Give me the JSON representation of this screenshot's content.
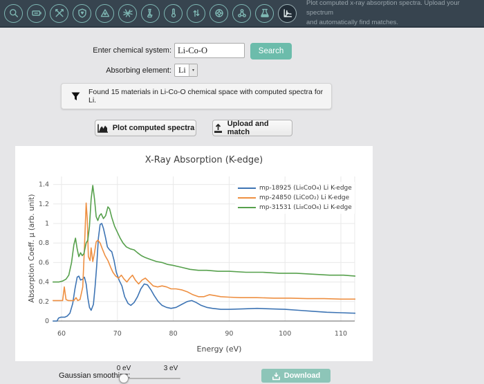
{
  "header": {
    "tooltip_line1": "Plot computed x-ray absorption spectra. Upload your spectrum",
    "tooltip_line2": "and automatically find matches.",
    "icons": [
      "search",
      "battery",
      "toolkit",
      "shield",
      "phase-diagram",
      "interface",
      "flask",
      "thermometer",
      "reaction-arrows",
      "porous",
      "molecule",
      "beaker",
      "xas-spectrum"
    ],
    "active_icon": "xas-spectrum"
  },
  "form": {
    "chemsys_label": "Enter chemical system:",
    "chemsys_value": "Li-Co-O",
    "search_label": "Search",
    "element_label": "Absorbing element:",
    "element_value": "Li"
  },
  "notice": {
    "text": "Found 15 materials in Li-Co-O chemical space with computed spectra for Li."
  },
  "actions": {
    "plot_label": "Plot computed spectra",
    "upload_label": "Upload and match"
  },
  "chart_data": {
    "type": "line",
    "title": "X-Ray Absorption (K-edge)",
    "xlabel": "Energy (eV)",
    "ylabel": "Absorption Coeff. μ (arb. unit)",
    "xlim": [
      58.4,
      112.6
    ],
    "ylim": [
      0,
      1.45
    ],
    "xticks": [
      60,
      70,
      80,
      90,
      100,
      110
    ],
    "yticks": [
      0,
      0.2,
      0.4,
      0.6,
      0.8,
      1,
      1.2,
      1.4
    ],
    "grid": true,
    "legend_position": "top-right",
    "series": [
      {
        "name": "mp-18925 (Li₆CoO₄) Li K-edge",
        "color": "#3d74b4",
        "points": [
          [
            58.4,
            0.0
          ],
          [
            59.2,
            0.0
          ],
          [
            59.45,
            0.03
          ],
          [
            59.9,
            0.04
          ],
          [
            60.6,
            0.04
          ],
          [
            61.0,
            0.05
          ],
          [
            61.5,
            0.08
          ],
          [
            62.0,
            0.18
          ],
          [
            62.4,
            0.33
          ],
          [
            62.8,
            0.45
          ],
          [
            63.1,
            0.46
          ],
          [
            63.4,
            0.42
          ],
          [
            63.8,
            0.43
          ],
          [
            64.1,
            0.45
          ],
          [
            64.4,
            0.38
          ],
          [
            64.7,
            0.24
          ],
          [
            65.0,
            0.14
          ],
          [
            65.3,
            0.11
          ],
          [
            65.7,
            0.17
          ],
          [
            66.0,
            0.35
          ],
          [
            66.3,
            0.57
          ],
          [
            66.6,
            0.85
          ],
          [
            66.9,
            0.99
          ],
          [
            67.2,
            1.0
          ],
          [
            67.5,
            0.95
          ],
          [
            67.9,
            0.85
          ],
          [
            68.2,
            0.76
          ],
          [
            68.6,
            0.73
          ],
          [
            69.0,
            0.71
          ],
          [
            69.4,
            0.62
          ],
          [
            69.8,
            0.5
          ],
          [
            70.3,
            0.42
          ],
          [
            70.8,
            0.36
          ],
          [
            71.3,
            0.25
          ],
          [
            71.9,
            0.18
          ],
          [
            72.4,
            0.16
          ],
          [
            73.0,
            0.19
          ],
          [
            73.6,
            0.25
          ],
          [
            74.2,
            0.33
          ],
          [
            74.8,
            0.38
          ],
          [
            75.4,
            0.37
          ],
          [
            76.0,
            0.32
          ],
          [
            76.6,
            0.26
          ],
          [
            77.3,
            0.2
          ],
          [
            78.0,
            0.16
          ],
          [
            78.8,
            0.14
          ],
          [
            79.6,
            0.13
          ],
          [
            80.5,
            0.14
          ],
          [
            81.5,
            0.17
          ],
          [
            82.5,
            0.2
          ],
          [
            83.3,
            0.21
          ],
          [
            84.1,
            0.19
          ],
          [
            85.0,
            0.16
          ],
          [
            86.0,
            0.14
          ],
          [
            87.0,
            0.13
          ],
          [
            88.5,
            0.12
          ],
          [
            90.0,
            0.12
          ],
          [
            92.5,
            0.125
          ],
          [
            95.0,
            0.13
          ],
          [
            97.5,
            0.125
          ],
          [
            100.0,
            0.12
          ],
          [
            102.5,
            0.11
          ],
          [
            105.0,
            0.1
          ],
          [
            107.5,
            0.09
          ],
          [
            110.0,
            0.085
          ],
          [
            112.6,
            0.08
          ]
        ]
      },
      {
        "name": "mp-24850 (LiCoO₂) Li K-edge",
        "color": "#ee8f41",
        "points": [
          [
            58.4,
            0.21
          ],
          [
            59.6,
            0.21
          ],
          [
            60.2,
            0.21
          ],
          [
            60.5,
            0.35
          ],
          [
            60.8,
            0.22
          ],
          [
            61.2,
            0.21
          ],
          [
            62.2,
            0.21
          ],
          [
            62.6,
            0.24
          ],
          [
            62.9,
            0.21
          ],
          [
            63.3,
            0.22
          ],
          [
            63.8,
            0.35
          ],
          [
            64.1,
            0.75
          ],
          [
            64.4,
            1.21
          ],
          [
            64.6,
            1.05
          ],
          [
            64.8,
            0.66
          ],
          [
            65.1,
            0.62
          ],
          [
            65.3,
            0.75
          ],
          [
            65.6,
            0.61
          ],
          [
            65.9,
            0.7
          ],
          [
            66.2,
            0.81
          ],
          [
            66.5,
            0.83
          ],
          [
            66.9,
            0.8
          ],
          [
            67.3,
            0.74
          ],
          [
            67.8,
            0.67
          ],
          [
            68.3,
            0.62
          ],
          [
            68.8,
            0.55
          ],
          [
            69.2,
            0.5
          ],
          [
            69.7,
            0.46
          ],
          [
            70.2,
            0.44
          ],
          [
            70.7,
            0.47
          ],
          [
            71.2,
            0.43
          ],
          [
            71.7,
            0.4
          ],
          [
            72.2,
            0.44
          ],
          [
            72.7,
            0.47
          ],
          [
            73.2,
            0.42
          ],
          [
            73.8,
            0.38
          ],
          [
            74.4,
            0.42
          ],
          [
            75.0,
            0.44
          ],
          [
            75.7,
            0.4
          ],
          [
            76.4,
            0.36
          ],
          [
            77.2,
            0.35
          ],
          [
            78.0,
            0.36
          ],
          [
            78.8,
            0.35
          ],
          [
            79.6,
            0.33
          ],
          [
            80.5,
            0.33
          ],
          [
            81.5,
            0.32
          ],
          [
            82.5,
            0.3
          ],
          [
            83.5,
            0.27
          ],
          [
            84.5,
            0.25
          ],
          [
            85.5,
            0.25
          ],
          [
            86.5,
            0.27
          ],
          [
            87.5,
            0.26
          ],
          [
            88.5,
            0.25
          ],
          [
            90.0,
            0.245
          ],
          [
            92.0,
            0.24
          ],
          [
            95.0,
            0.24
          ],
          [
            98.0,
            0.235
          ],
          [
            101.0,
            0.235
          ],
          [
            104.0,
            0.23
          ],
          [
            107.0,
            0.23
          ],
          [
            110.0,
            0.225
          ],
          [
            112.6,
            0.225
          ]
        ]
      },
      {
        "name": "mp-31531 (Li₈CoO₆) Li K-edge",
        "color": "#56a04c",
        "points": [
          [
            58.4,
            0.4
          ],
          [
            59.5,
            0.4
          ],
          [
            60.2,
            0.41
          ],
          [
            60.8,
            0.43
          ],
          [
            61.3,
            0.47
          ],
          [
            61.8,
            0.6
          ],
          [
            62.2,
            0.78
          ],
          [
            62.5,
            0.85
          ],
          [
            62.8,
            0.74
          ],
          [
            63.1,
            0.66
          ],
          [
            63.4,
            0.7
          ],
          [
            63.7,
            0.67
          ],
          [
            64.0,
            0.69
          ],
          [
            64.4,
            0.8
          ],
          [
            64.7,
            0.83
          ],
          [
            65.0,
            0.97
          ],
          [
            65.3,
            1.25
          ],
          [
            65.6,
            1.39
          ],
          [
            65.9,
            1.25
          ],
          [
            66.2,
            1.07
          ],
          [
            66.5,
            1.03
          ],
          [
            66.8,
            1.08
          ],
          [
            67.1,
            1.1
          ],
          [
            67.5,
            1.05
          ],
          [
            67.9,
            1.08
          ],
          [
            68.3,
            1.17
          ],
          [
            68.6,
            1.15
          ],
          [
            69.0,
            1.06
          ],
          [
            69.5,
            0.97
          ],
          [
            70.0,
            0.91
          ],
          [
            70.5,
            0.85
          ],
          [
            71.0,
            0.8
          ],
          [
            71.6,
            0.76
          ],
          [
            72.3,
            0.74
          ],
          [
            73.0,
            0.73
          ],
          [
            73.6,
            0.7
          ],
          [
            74.3,
            0.67
          ],
          [
            75.0,
            0.65
          ],
          [
            76.0,
            0.63
          ],
          [
            77.0,
            0.61
          ],
          [
            78.0,
            0.6
          ],
          [
            79.0,
            0.58
          ],
          [
            80.0,
            0.57
          ],
          [
            81.5,
            0.55
          ],
          [
            83.0,
            0.53
          ],
          [
            84.5,
            0.52
          ],
          [
            86.0,
            0.52
          ],
          [
            88.0,
            0.51
          ],
          [
            90.0,
            0.51
          ],
          [
            93.0,
            0.5
          ],
          [
            96.0,
            0.5
          ],
          [
            99.0,
            0.49
          ],
          [
            102.0,
            0.49
          ],
          [
            105.0,
            0.48
          ],
          [
            108.0,
            0.47
          ],
          [
            110.5,
            0.47
          ],
          [
            112.6,
            0.46
          ]
        ]
      }
    ]
  },
  "footer": {
    "smoothing_label": "Gaussian smoothing:",
    "slider_min_label": "0 eV",
    "slider_max_label": "3 eV",
    "download_label": "Download"
  }
}
